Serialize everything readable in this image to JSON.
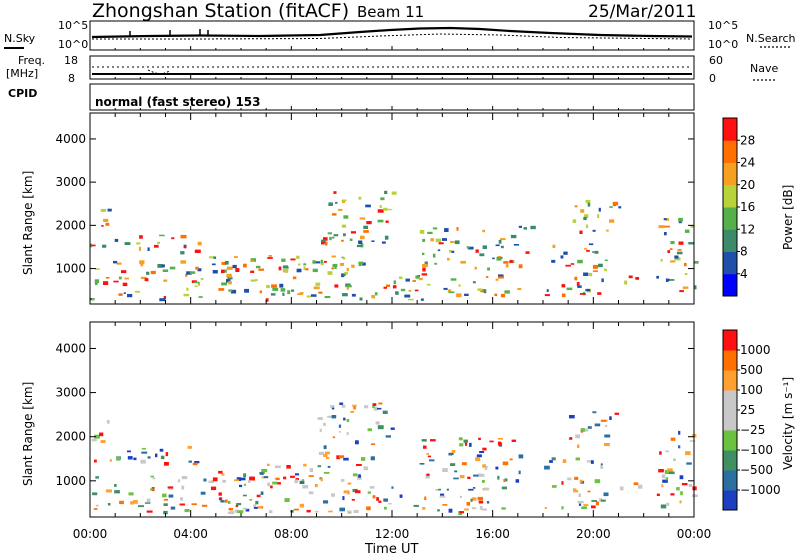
{
  "header": {
    "title": "Zhongshan Station (fitACF)",
    "beam": "Beam 11",
    "date": "25/Mar/2011"
  },
  "labels": {
    "nsky": "N.Sky",
    "nsearch": "N.Search",
    "freq": "Freq.",
    "mhz": "[MHz]",
    "nave": "Nave",
    "cpid": "CPID",
    "mode": "normal (fast stereo) 153"
  },
  "noise_panel": {
    "left_ticks": [
      "10^5",
      "10^0"
    ],
    "right_ticks": [
      "10^5",
      "10^0"
    ]
  },
  "freq_panel": {
    "left_ticks": [
      "18",
      "8"
    ],
    "right_ticks": [
      "60",
      "0"
    ]
  },
  "colors": {
    "power_scale": [
      "#0000ff",
      "#1f4fa8",
      "#3b8a6a",
      "#55b04a",
      "#b8d23a",
      "#f5a020",
      "#ff7000",
      "#ff1010"
    ],
    "velocity_scale": [
      "#1c3fbf",
      "#2a6fa0",
      "#3f8f63",
      "#6ac23e",
      "#c8c8c8",
      "#c8c8c8",
      "#ffa030",
      "#ff7000",
      "#ff1010"
    ]
  },
  "chart_data": [
    {
      "type": "heatmap",
      "title": "",
      "xlabel": "",
      "ylabel": "Slant Range [km]",
      "xlim": [
        "00:00",
        "24:00"
      ],
      "ylim": [
        180,
        4600
      ],
      "yticks": [
        "4000",
        "3000",
        "2000",
        "1000"
      ],
      "colorbar": {
        "label": "Power [dB]",
        "ticks": [
          "28",
          "24",
          "20",
          "16",
          "12",
          "8",
          "4"
        ],
        "range": [
          0,
          30
        ]
      }
    },
    {
      "type": "heatmap",
      "title": "",
      "xlabel": "Time UT",
      "ylabel": "Slant Range [km]",
      "xlim": [
        "00:00",
        "24:00"
      ],
      "ylim": [
        180,
        4600
      ],
      "xticks": [
        "00:00",
        "04:00",
        "08:00",
        "12:00",
        "16:00",
        "20:00",
        "00:00"
      ],
      "yticks": [
        "4000",
        "3000",
        "2000",
        "1000"
      ],
      "colorbar": {
        "label": "Velocity [m s⁻¹]",
        "ticks": [
          "1000",
          "500",
          "100",
          "25",
          "−25",
          "−100",
          "−500",
          "−1000"
        ]
      }
    }
  ]
}
